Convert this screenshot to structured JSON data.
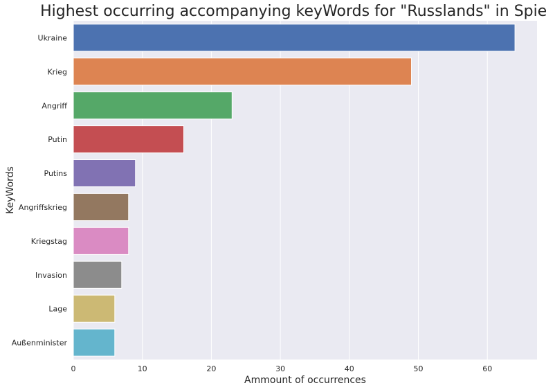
{
  "chart_data": {
    "type": "bar",
    "orientation": "horizontal",
    "title": "Highest occurring accompanying keyWords for \"Russlands\" in Spiegel",
    "xlabel": "Ammount of occurrences",
    "ylabel": "KeyWords",
    "categories": [
      "Ukraine",
      "Krieg",
      "Angriff",
      "Putin",
      "Putins",
      "Angriffskrieg",
      "Kriegstag",
      "Invasion",
      "Lage",
      "Außenminister"
    ],
    "values": [
      64,
      49,
      23,
      16,
      9,
      8,
      8,
      7,
      6,
      6
    ],
    "colors": [
      "#4c72b0",
      "#dd8452",
      "#55a868",
      "#c44e52",
      "#8172b3",
      "#937860",
      "#da8bc3",
      "#8c8c8c",
      "#ccb974",
      "#64b5cd"
    ],
    "xlim": [
      0,
      67.2
    ],
    "xticks": [
      0,
      10,
      20,
      30,
      40,
      50,
      60
    ],
    "grid": true,
    "background": "#eaeaf2",
    "grid_color": "#ffffff"
  }
}
